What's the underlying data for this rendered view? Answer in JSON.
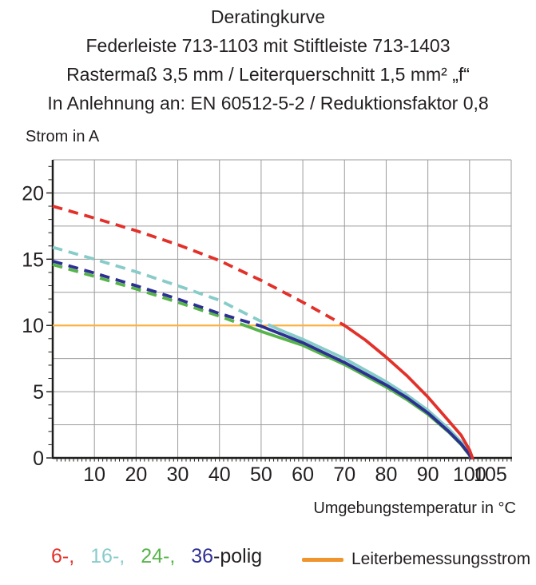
{
  "chart_data": {
    "type": "line",
    "title": "Deratingkurve",
    "subtitle_lines": [
      "Federleiste 713-1103 mit Stiftleiste 713-1403",
      "Rastermaß 3,5 mm / Leiterquerschnitt 1,5 mm² „f“",
      "In Anlehnung an: EN 60512-5-2 / Reduktionsfaktor 0,8"
    ],
    "ylabel": "Strom in A",
    "xlabel": "Umgebungstemperatur in °C",
    "xlim": [
      0,
      110
    ],
    "ylim": [
      0,
      22.5
    ],
    "x_major_ticks": [
      10,
      20,
      30,
      40,
      50,
      60,
      70,
      80,
      90,
      100,
      105
    ],
    "y_major_ticks": [
      0,
      5,
      10,
      15,
      20
    ],
    "x_grid_step": 10,
    "y_grid_step": 2.5,
    "x_minor_step": 1,
    "y_minor_step": 1,
    "grid": true,
    "legend_position": "bottom",
    "grid_color": "#9B9B9B",
    "axis_color": "#1D1D1B",
    "text_color": "#231F20",
    "series": [
      {
        "name": "24-polig",
        "color": "#57B44A",
        "style": "dashed-above-rated-then-solid",
        "dash_until": 47,
        "points": [
          [
            0,
            14.6
          ],
          [
            10,
            13.7
          ],
          [
            20,
            12.75
          ],
          [
            30,
            11.75
          ],
          [
            40,
            10.7
          ],
          [
            50,
            9.55
          ],
          [
            60,
            8.5
          ],
          [
            70,
            7.05
          ],
          [
            80,
            5.35
          ],
          [
            85,
            4.4
          ],
          [
            90,
            3.3
          ],
          [
            95,
            1.95
          ],
          [
            98,
            1.0
          ],
          [
            100,
            0.2
          ],
          [
            100.2,
            0
          ]
        ]
      },
      {
        "name": "16-polig",
        "color": "#87CCC9",
        "style": "dashed-above-rated-then-solid",
        "dash_until": 52.5,
        "points": [
          [
            0,
            15.9
          ],
          [
            10,
            15.0
          ],
          [
            20,
            14.05
          ],
          [
            30,
            13.0
          ],
          [
            40,
            11.9
          ],
          [
            50,
            10.3
          ],
          [
            55,
            9.6
          ],
          [
            60,
            8.95
          ],
          [
            70,
            7.5
          ],
          [
            80,
            5.75
          ],
          [
            85,
            4.75
          ],
          [
            90,
            3.6
          ],
          [
            95,
            2.2
          ],
          [
            98,
            1.2
          ],
          [
            100,
            0.35
          ],
          [
            100.5,
            0
          ]
        ]
      },
      {
        "name": "36-polig",
        "color": "#2D3092",
        "style": "dashed-above-rated-then-solid",
        "dash_until": 50,
        "points": [
          [
            0,
            14.85
          ],
          [
            10,
            13.95
          ],
          [
            20,
            13.0
          ],
          [
            30,
            12.0
          ],
          [
            40,
            10.9
          ],
          [
            50,
            9.95
          ],
          [
            60,
            8.7
          ],
          [
            70,
            7.2
          ],
          [
            80,
            5.5
          ],
          [
            85,
            4.55
          ],
          [
            90,
            3.4
          ],
          [
            95,
            2.0
          ],
          [
            98,
            1.05
          ],
          [
            100,
            0.25
          ],
          [
            100.3,
            0
          ]
        ]
      },
      {
        "name": "6-polig",
        "color": "#E2312A",
        "style": "dashed-above-rated-then-solid",
        "dash_until": 70,
        "points": [
          [
            0,
            19.0
          ],
          [
            10,
            18.1
          ],
          [
            20,
            17.15
          ],
          [
            30,
            16.1
          ],
          [
            40,
            14.9
          ],
          [
            50,
            13.4
          ],
          [
            60,
            11.75
          ],
          [
            70,
            10.0
          ],
          [
            75,
            8.9
          ],
          [
            80,
            7.6
          ],
          [
            85,
            6.2
          ],
          [
            90,
            4.6
          ],
          [
            95,
            2.8
          ],
          [
            98,
            1.7
          ],
          [
            100,
            0.6
          ],
          [
            100.7,
            0
          ]
        ]
      }
    ],
    "rated_line": {
      "name": "Leiterbemessungsstrom",
      "color": "#FBB042",
      "y": 10,
      "x_start": 0,
      "x_end": 70.5
    }
  },
  "legend": {
    "series": [
      {
        "label": "6-,",
        "color": "#E2312A"
      },
      {
        "label": "16-,",
        "color": "#87CCC9"
      },
      {
        "label": "24-,",
        "color": "#57B44A"
      },
      {
        "label": "36",
        "color": "#2D3092"
      }
    ],
    "suffix": "-polig",
    "rated": {
      "label": "Leiterbemessungsstrom",
      "color": "#F0942D"
    }
  }
}
